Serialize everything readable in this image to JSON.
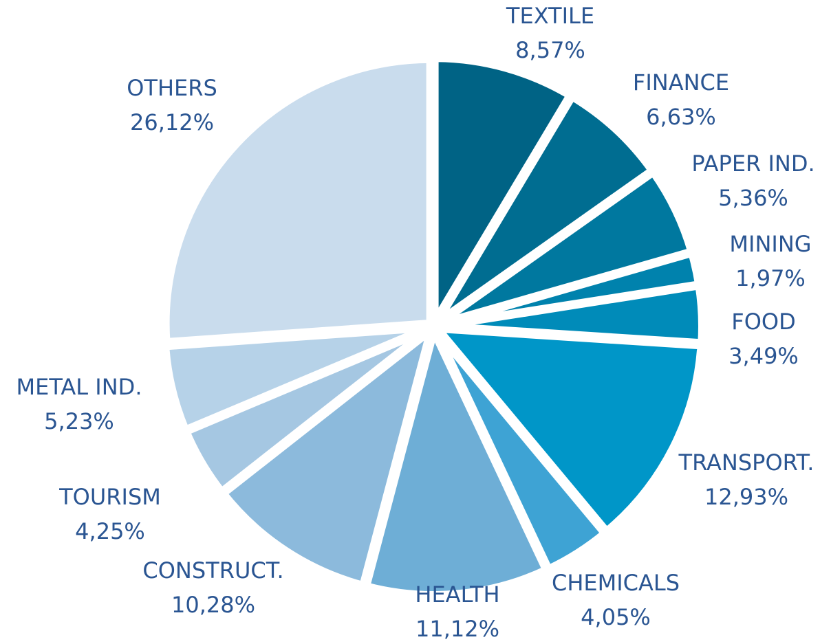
{
  "chart_data": {
    "type": "pie",
    "categories": [
      "TEXTILE",
      "FINANCE",
      "PAPER IND.",
      "MINING",
      "FOOD",
      "TRANSPORT.",
      "CHEMICALS",
      "HEALTH",
      "CONSTRUCT.",
      "TOURISM",
      "METAL IND.",
      "OTHERS"
    ],
    "values": [
      8.57,
      6.63,
      5.36,
      1.97,
      3.49,
      12.93,
      4.05,
      11.12,
      10.28,
      4.25,
      5.23,
      26.12
    ],
    "value_labels": [
      "8,57%",
      "6,63%",
      "5,36%",
      "1,97%",
      "3,49%",
      "12,93%",
      "4,05%",
      "11,12%",
      "10,28%",
      "4,25%",
      "5,23%",
      "26,12%"
    ],
    "colors": [
      "#006385",
      "#006d91",
      "#00789f",
      "#0082ad",
      "#008bb9",
      "#0096c8",
      "#3ea3d4",
      "#6eaed6",
      "#8cbadc",
      "#a5c7e2",
      "#b6d2e8",
      "#c9dced"
    ]
  }
}
